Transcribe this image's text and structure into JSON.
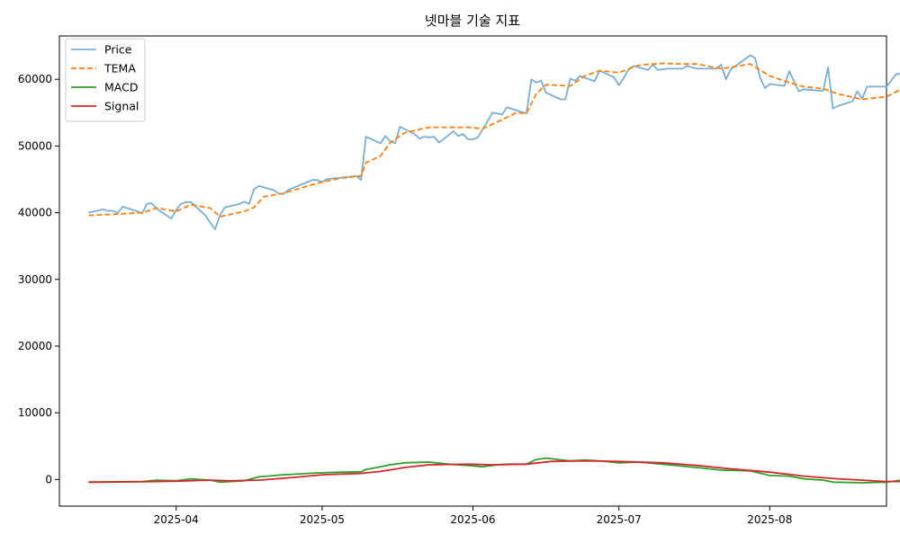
{
  "chart_data": {
    "type": "line",
    "title": "넷마블 기술 지표",
    "xlabel": "",
    "ylabel": "",
    "ylim": [
      -4000,
      66500
    ],
    "xlim": [
      "2025-03-08",
      "2025-08-25"
    ],
    "grid": false,
    "legend_position": "top-left",
    "x_ticks": [
      {
        "date": "2025-04-01",
        "label": "2025-04"
      },
      {
        "date": "2025-05-01",
        "label": "2025-05"
      },
      {
        "date": "2025-06-01",
        "label": "2025-06"
      },
      {
        "date": "2025-07-01",
        "label": "2025-07"
      },
      {
        "date": "2025-08-01",
        "label": "2025-08"
      }
    ],
    "y_ticks": [
      {
        "value": 0,
        "label": "0"
      },
      {
        "value": 10000,
        "label": "10000"
      },
      {
        "value": 20000,
        "label": "20000"
      },
      {
        "value": 30000,
        "label": "30000"
      },
      {
        "value": 40000,
        "label": "40000"
      },
      {
        "value": 50000,
        "label": "50000"
      },
      {
        "value": 60000,
        "label": "60000"
      }
    ],
    "series": [
      {
        "name": "Price",
        "color": "#7aaed4",
        "style": "solid",
        "points": [
          [
            "2025-03-14",
            40000
          ],
          [
            "2025-03-17",
            40500
          ],
          [
            "2025-03-18",
            40250
          ],
          [
            "2025-03-19",
            40300
          ],
          [
            "2025-03-20",
            39950
          ],
          [
            "2025-03-21",
            40900
          ],
          [
            "2025-03-24",
            40200
          ],
          [
            "2025-03-25",
            39900
          ],
          [
            "2025-03-26",
            41350
          ],
          [
            "2025-03-27",
            41400
          ],
          [
            "2025-03-28",
            40600
          ],
          [
            "2025-03-31",
            39100
          ],
          [
            "2025-04-01",
            40400
          ],
          [
            "2025-04-02",
            41300
          ],
          [
            "2025-04-03",
            41600
          ],
          [
            "2025-04-04",
            41600
          ],
          [
            "2025-04-07",
            39600
          ],
          [
            "2025-04-08",
            38500
          ],
          [
            "2025-04-09",
            37500
          ],
          [
            "2025-04-10",
            39600
          ],
          [
            "2025-04-11",
            40800
          ],
          [
            "2025-04-14",
            41300
          ],
          [
            "2025-04-15",
            41650
          ],
          [
            "2025-04-16",
            41300
          ],
          [
            "2025-04-17",
            43500
          ],
          [
            "2025-04-18",
            44000
          ],
          [
            "2025-04-21",
            43400
          ],
          [
            "2025-04-22",
            42900
          ],
          [
            "2025-04-23",
            42800
          ],
          [
            "2025-04-24",
            43400
          ],
          [
            "2025-04-25",
            43700
          ],
          [
            "2025-04-28",
            44600
          ],
          [
            "2025-04-29",
            44900
          ],
          [
            "2025-04-30",
            44900
          ],
          [
            "2025-05-01",
            44600
          ],
          [
            "2025-05-02",
            45050
          ],
          [
            "2025-05-07",
            45400
          ],
          [
            "2025-05-08",
            45500
          ],
          [
            "2025-05-09",
            44900
          ],
          [
            "2025-05-10",
            51400
          ],
          [
            "2025-05-13",
            50400
          ],
          [
            "2025-05-14",
            51500
          ],
          [
            "2025-05-15",
            50700
          ],
          [
            "2025-05-16",
            50400
          ],
          [
            "2025-05-17",
            52900
          ],
          [
            "2025-05-20",
            51800
          ],
          [
            "2025-05-21",
            51100
          ],
          [
            "2025-05-22",
            51400
          ],
          [
            "2025-05-23",
            51300
          ],
          [
            "2025-05-24",
            51400
          ],
          [
            "2025-05-25",
            50500
          ],
          [
            "2025-05-28",
            52200
          ],
          [
            "2025-05-29",
            51500
          ],
          [
            "2025-05-30",
            51800
          ],
          [
            "2025-05-31",
            51000
          ],
          [
            "2025-06-01",
            51000
          ],
          [
            "2025-06-02",
            51300
          ],
          [
            "2025-06-04",
            53700
          ],
          [
            "2025-06-05",
            55000
          ],
          [
            "2025-06-06",
            54900
          ],
          [
            "2025-06-07",
            54700
          ],
          [
            "2025-06-08",
            55800
          ],
          [
            "2025-06-11",
            55100
          ],
          [
            "2025-06-12",
            54900
          ],
          [
            "2025-06-13",
            60000
          ],
          [
            "2025-06-14",
            59500
          ],
          [
            "2025-06-15",
            59800
          ],
          [
            "2025-06-16",
            58000
          ],
          [
            "2025-06-19",
            57000
          ],
          [
            "2025-06-20",
            57000
          ],
          [
            "2025-06-21",
            60100
          ],
          [
            "2025-06-22",
            59800
          ],
          [
            "2025-06-23",
            60500
          ],
          [
            "2025-06-26",
            59700
          ],
          [
            "2025-06-27",
            61300
          ],
          [
            "2025-06-30",
            60300
          ],
          [
            "2025-07-01",
            59100
          ],
          [
            "2025-07-02",
            60200
          ],
          [
            "2025-07-03",
            61500
          ],
          [
            "2025-07-04",
            62000
          ],
          [
            "2025-07-07",
            61400
          ],
          [
            "2025-07-08",
            62200
          ],
          [
            "2025-07-09",
            61400
          ],
          [
            "2025-07-10",
            61500
          ],
          [
            "2025-07-11",
            61600
          ],
          [
            "2025-07-14",
            61600
          ],
          [
            "2025-07-15",
            62000
          ],
          [
            "2025-07-16",
            61800
          ],
          [
            "2025-07-17",
            61600
          ],
          [
            "2025-07-21",
            61600
          ],
          [
            "2025-07-22",
            62200
          ],
          [
            "2025-07-23",
            60000
          ],
          [
            "2025-07-24",
            61500
          ],
          [
            "2025-07-28",
            63600
          ],
          [
            "2025-07-29",
            63200
          ],
          [
            "2025-07-30",
            60300
          ],
          [
            "2025-07-31",
            58700
          ],
          [
            "2025-08-01",
            59300
          ],
          [
            "2025-08-04",
            59000
          ],
          [
            "2025-08-05",
            61200
          ],
          [
            "2025-08-06",
            59700
          ],
          [
            "2025-08-07",
            58200
          ],
          [
            "2025-08-08",
            58500
          ],
          [
            "2025-08-11",
            58300
          ],
          [
            "2025-08-12",
            58300
          ],
          [
            "2025-08-13",
            61800
          ],
          [
            "2025-08-14",
            55600
          ],
          [
            "2025-08-15",
            56000
          ],
          [
            "2025-08-18",
            56700
          ],
          [
            "2025-08-19",
            58200
          ],
          [
            "2025-08-20",
            57100
          ],
          [
            "2025-08-21",
            58900
          ],
          [
            "2025-08-24",
            58900
          ],
          [
            "2025-08-25",
            58900
          ],
          [
            "2025-08-27",
            60800
          ],
          [
            "2025-08-28",
            60800
          ]
        ]
      },
      {
        "name": "TEMA",
        "color": "#ff7f0e",
        "style": "dashed",
        "points": [
          [
            "2025-03-14",
            39600
          ],
          [
            "2025-03-20",
            39800
          ],
          [
            "2025-03-25",
            40000
          ],
          [
            "2025-03-28",
            40700
          ],
          [
            "2025-04-01",
            40200
          ],
          [
            "2025-04-04",
            41200
          ],
          [
            "2025-04-08",
            40700
          ],
          [
            "2025-04-10",
            39400
          ],
          [
            "2025-04-15",
            40200
          ],
          [
            "2025-04-17",
            40800
          ],
          [
            "2025-04-19",
            42400
          ],
          [
            "2025-04-23",
            42900
          ],
          [
            "2025-04-28",
            44000
          ],
          [
            "2025-05-01",
            44600
          ],
          [
            "2025-05-05",
            45200
          ],
          [
            "2025-05-09",
            45500
          ],
          [
            "2025-05-10",
            47500
          ],
          [
            "2025-05-13",
            48500
          ],
          [
            "2025-05-15",
            50500
          ],
          [
            "2025-05-18",
            52000
          ],
          [
            "2025-05-23",
            52800
          ],
          [
            "2025-05-27",
            52800
          ],
          [
            "2025-05-31",
            52800
          ],
          [
            "2025-06-03",
            52600
          ],
          [
            "2025-06-06",
            53600
          ],
          [
            "2025-06-08",
            54300
          ],
          [
            "2025-06-10",
            55000
          ],
          [
            "2025-06-12",
            54900
          ],
          [
            "2025-06-14",
            57800
          ],
          [
            "2025-06-16",
            59200
          ],
          [
            "2025-06-21",
            59000
          ],
          [
            "2025-06-24",
            60500
          ],
          [
            "2025-06-27",
            61300
          ],
          [
            "2025-07-01",
            61000
          ],
          [
            "2025-07-05",
            62100
          ],
          [
            "2025-07-10",
            62400
          ],
          [
            "2025-07-14",
            62300
          ],
          [
            "2025-07-17",
            62300
          ],
          [
            "2025-07-22",
            61600
          ],
          [
            "2025-07-28",
            62300
          ],
          [
            "2025-08-01",
            60500
          ],
          [
            "2025-08-05",
            59500
          ],
          [
            "2025-08-08",
            58900
          ],
          [
            "2025-08-12",
            58600
          ],
          [
            "2025-08-15",
            57800
          ],
          [
            "2025-08-20",
            57000
          ],
          [
            "2025-08-25",
            57400
          ],
          [
            "2025-08-28",
            58500
          ]
        ]
      },
      {
        "name": "MACD",
        "color": "#2ca02c",
        "style": "solid",
        "points": [
          [
            "2025-03-14",
            -400
          ],
          [
            "2025-03-20",
            -350
          ],
          [
            "2025-03-25",
            -300
          ],
          [
            "2025-03-28",
            -100
          ],
          [
            "2025-04-01",
            -200
          ],
          [
            "2025-04-04",
            100
          ],
          [
            "2025-04-08",
            -100
          ],
          [
            "2025-04-10",
            -400
          ],
          [
            "2025-04-15",
            -200
          ],
          [
            "2025-04-18",
            400
          ],
          [
            "2025-04-23",
            700
          ],
          [
            "2025-04-28",
            900
          ],
          [
            "2025-05-01",
            1000
          ],
          [
            "2025-05-05",
            1100
          ],
          [
            "2025-05-09",
            1150
          ],
          [
            "2025-05-10",
            1500
          ],
          [
            "2025-05-13",
            1900
          ],
          [
            "2025-05-15",
            2200
          ],
          [
            "2025-05-18",
            2500
          ],
          [
            "2025-05-23",
            2600
          ],
          [
            "2025-05-27",
            2300
          ],
          [
            "2025-05-31",
            2100
          ],
          [
            "2025-06-03",
            1900
          ],
          [
            "2025-06-06",
            2200
          ],
          [
            "2025-06-08",
            2300
          ],
          [
            "2025-06-12",
            2300
          ],
          [
            "2025-06-14",
            3000
          ],
          [
            "2025-06-16",
            3200
          ],
          [
            "2025-06-21",
            2800
          ],
          [
            "2025-06-24",
            2900
          ],
          [
            "2025-06-27",
            2800
          ],
          [
            "2025-07-01",
            2500
          ],
          [
            "2025-07-05",
            2600
          ],
          [
            "2025-07-10",
            2300
          ],
          [
            "2025-07-14",
            2000
          ],
          [
            "2025-07-17",
            1800
          ],
          [
            "2025-07-22",
            1400
          ],
          [
            "2025-07-28",
            1300
          ],
          [
            "2025-08-01",
            600
          ],
          [
            "2025-08-05",
            500
          ],
          [
            "2025-08-08",
            100
          ],
          [
            "2025-08-12",
            -100
          ],
          [
            "2025-08-14",
            -400
          ],
          [
            "2025-08-20",
            -500
          ],
          [
            "2025-08-25",
            -400
          ],
          [
            "2025-08-28",
            -100
          ]
        ]
      },
      {
        "name": "Signal",
        "color": "#d62728",
        "style": "solid",
        "points": [
          [
            "2025-03-14",
            -400
          ],
          [
            "2025-03-25",
            -350
          ],
          [
            "2025-04-01",
            -250
          ],
          [
            "2025-04-08",
            -100
          ],
          [
            "2025-04-12",
            -200
          ],
          [
            "2025-04-18",
            -100
          ],
          [
            "2025-04-25",
            300
          ],
          [
            "2025-05-01",
            700
          ],
          [
            "2025-05-09",
            900
          ],
          [
            "2025-05-13",
            1200
          ],
          [
            "2025-05-18",
            1800
          ],
          [
            "2025-05-23",
            2200
          ],
          [
            "2025-05-31",
            2300
          ],
          [
            "2025-06-05",
            2200
          ],
          [
            "2025-06-12",
            2300
          ],
          [
            "2025-06-17",
            2700
          ],
          [
            "2025-06-24",
            2800
          ],
          [
            "2025-07-01",
            2700
          ],
          [
            "2025-07-10",
            2500
          ],
          [
            "2025-07-17",
            2100
          ],
          [
            "2025-07-24",
            1600
          ],
          [
            "2025-08-01",
            1100
          ],
          [
            "2025-08-08",
            500
          ],
          [
            "2025-08-15",
            100
          ],
          [
            "2025-08-20",
            -100
          ],
          [
            "2025-08-25",
            -300
          ],
          [
            "2025-08-28",
            -300
          ]
        ]
      }
    ]
  }
}
